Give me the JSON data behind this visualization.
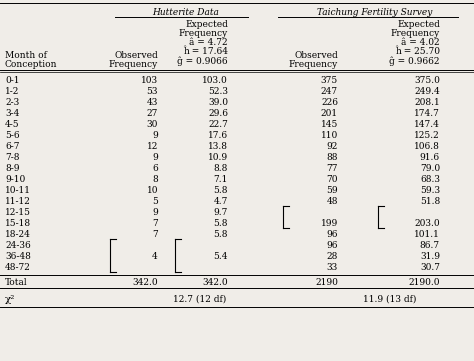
{
  "title_hutterite": "Hutterite Data",
  "title_taichung": "Taichung Fertility Survey",
  "rows": [
    [
      "0-1",
      "103",
      "103.0",
      "375",
      "375.0"
    ],
    [
      "1-2",
      "53",
      "52.3",
      "247",
      "249.4"
    ],
    [
      "2-3",
      "43",
      "39.0",
      "226",
      "208.1"
    ],
    [
      "3-4",
      "27",
      "29.6",
      "201",
      "174.7"
    ],
    [
      "4-5",
      "30",
      "22.7",
      "145",
      "147.4"
    ],
    [
      "5-6",
      "9",
      "17.6",
      "110",
      "125.2"
    ],
    [
      "6-7",
      "12",
      "13.8",
      "92",
      "106.8"
    ],
    [
      "7-8",
      "9",
      "10.9",
      "88",
      "91.6"
    ],
    [
      "8-9",
      "6",
      "8.8",
      "77",
      "79.0"
    ],
    [
      "9-10",
      "8",
      "7.1",
      "70",
      "68.3"
    ],
    [
      "10-11",
      "10",
      "5.8",
      "59",
      "59.3"
    ],
    [
      "11-12",
      "5",
      "4.7",
      "48",
      "51.8"
    ],
    [
      "12-15",
      "9",
      "9.7",
      "",
      ""
    ],
    [
      "15-18",
      "7",
      "5.8",
      "199",
      "203.0"
    ],
    [
      "18-24",
      "7",
      "5.8",
      "96",
      "101.1"
    ],
    [
      "24-36",
      "",
      "",
      "96",
      "86.7"
    ],
    [
      "36-48",
      "4",
      "5.4",
      "28",
      "31.9"
    ],
    [
      "48-72",
      "",
      "",
      "33",
      "30.7"
    ]
  ],
  "total_row": [
    "Total",
    "342.0",
    "342.0",
    "2190",
    "2190.0"
  ],
  "bg_color": "#f0ede8",
  "font_size": 6.5,
  "font_family": "serif"
}
